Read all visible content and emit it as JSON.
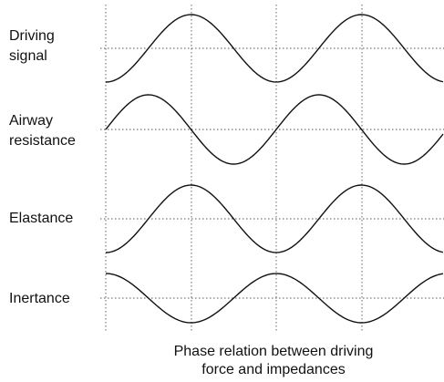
{
  "labels": [
    [
      "Driving",
      "signal"
    ],
    [
      "Airway",
      "resistance"
    ],
    [
      "Elastance"
    ],
    [
      "Inertance"
    ]
  ],
  "caption": [
    "Phase relation between driving",
    "force and impedances"
  ]
}
